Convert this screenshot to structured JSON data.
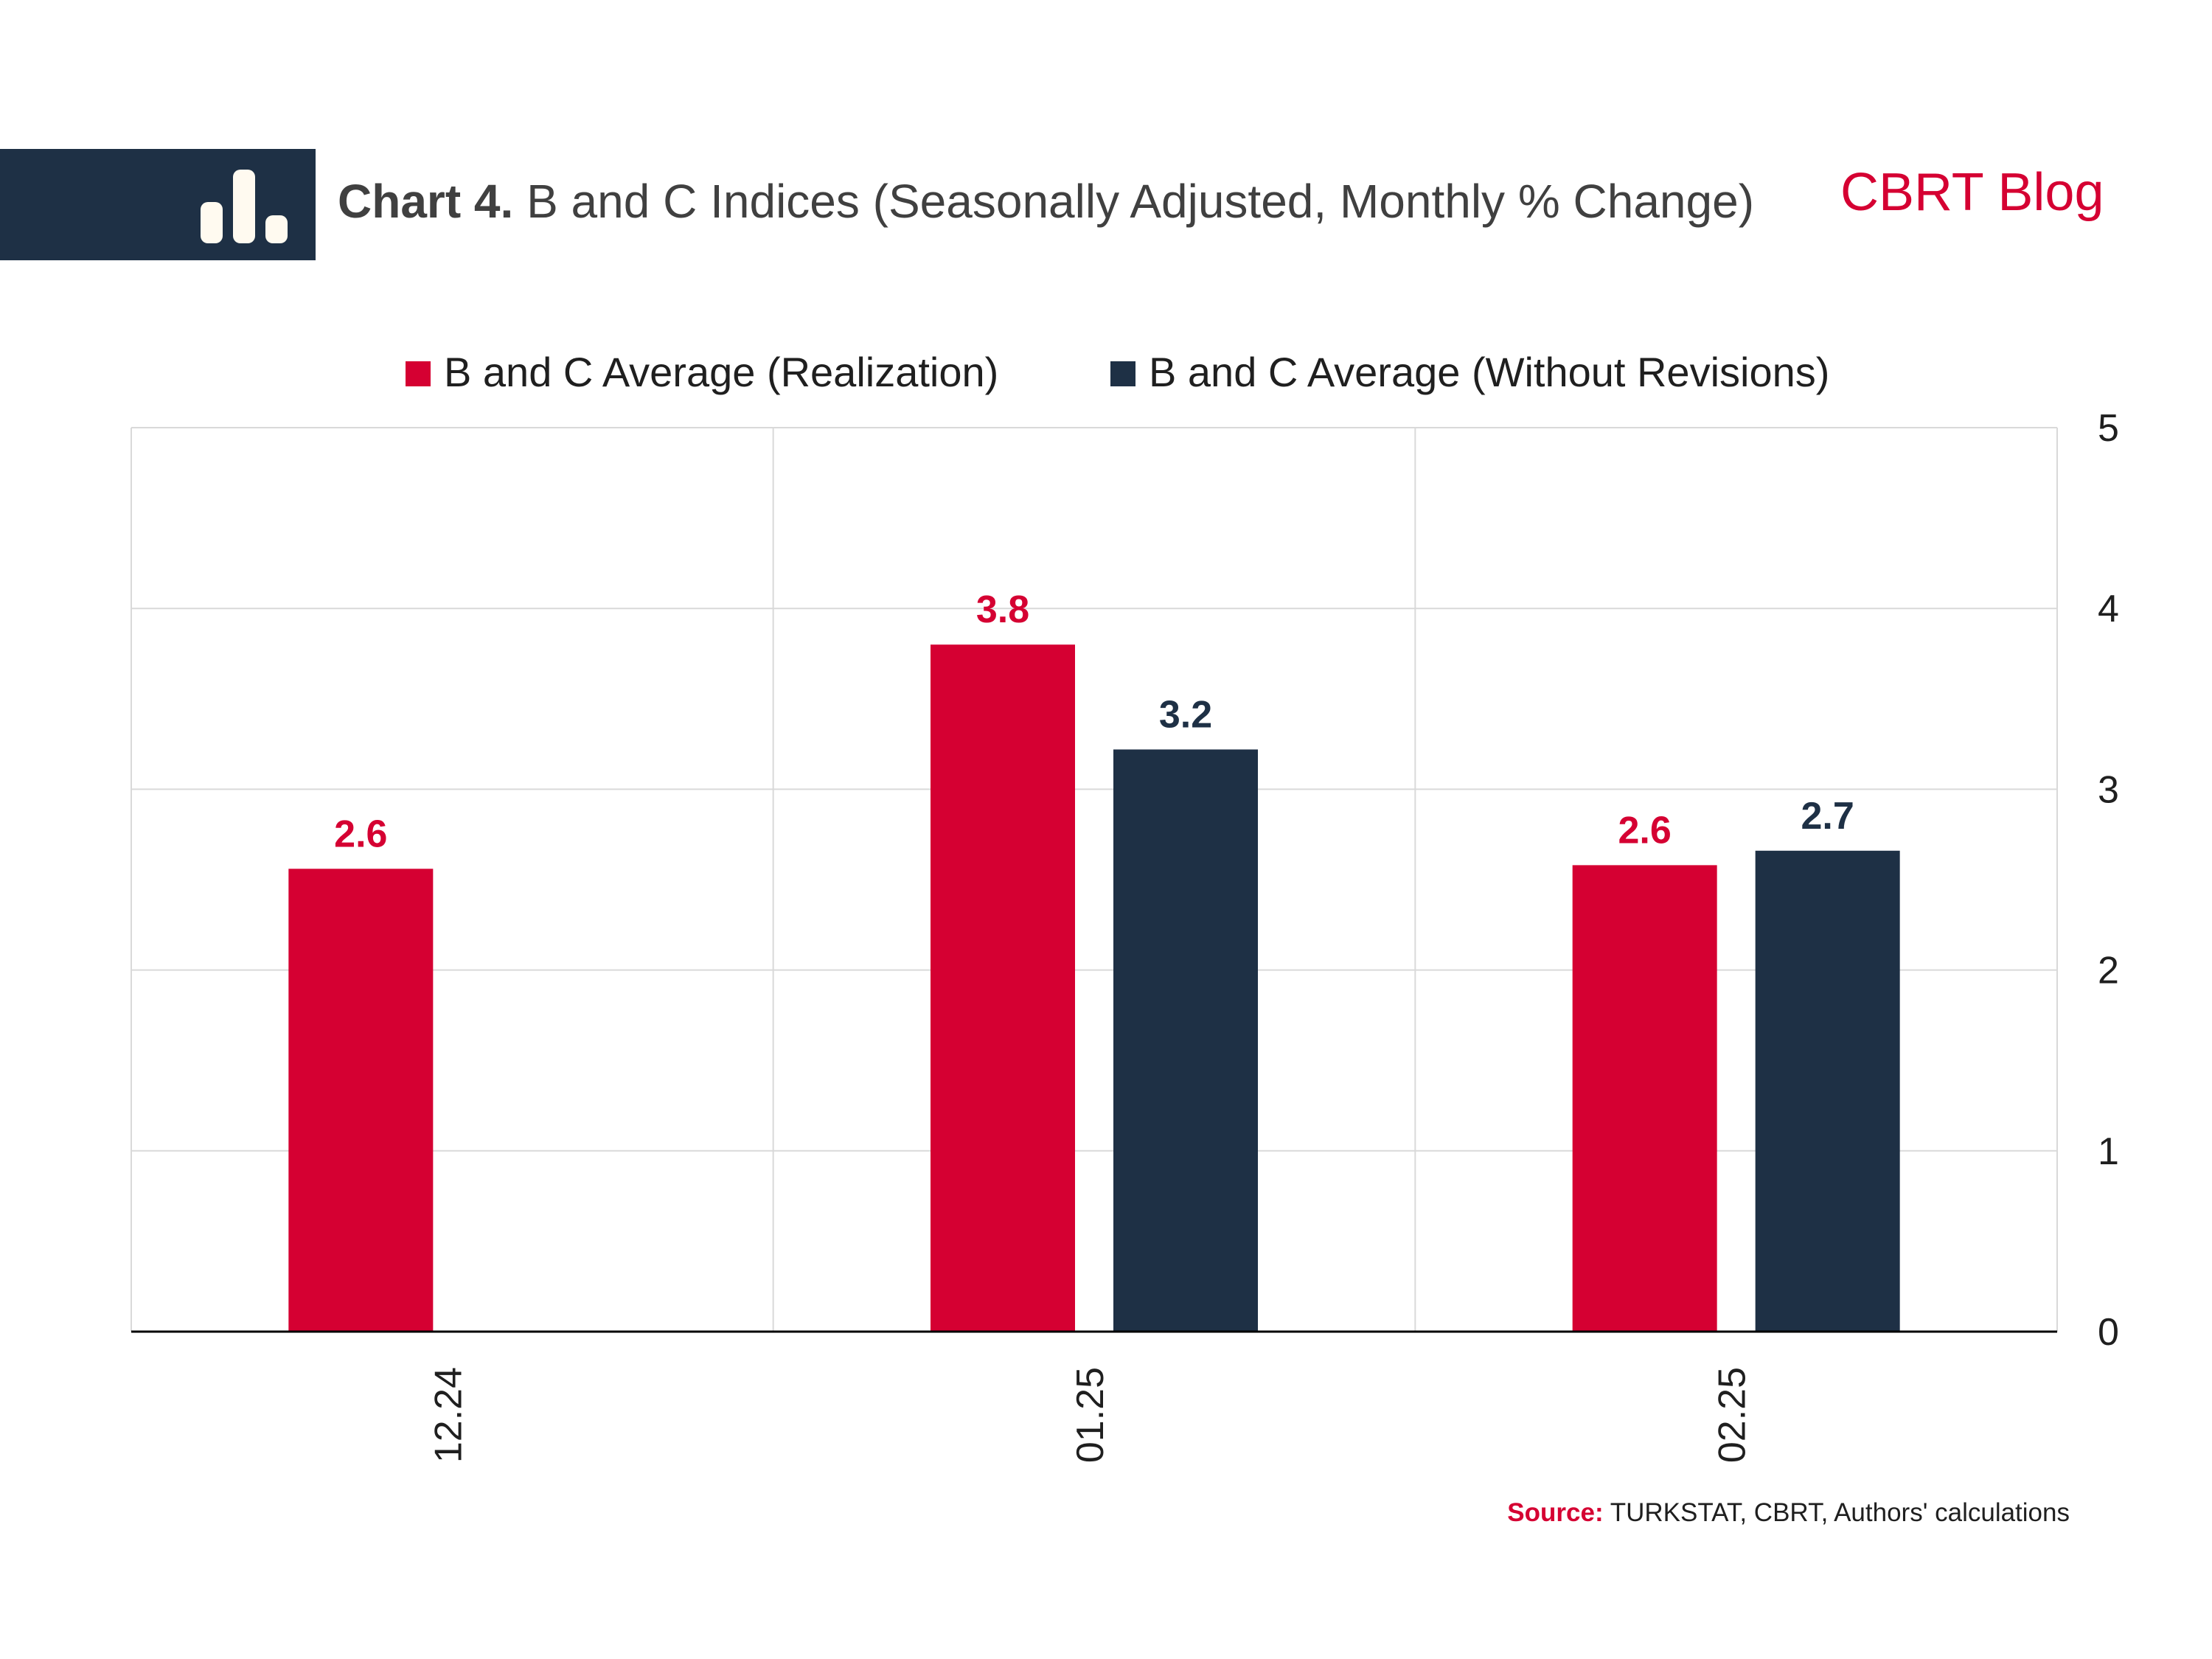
{
  "header": {
    "title_prefix": "Chart 4.",
    "title_text": " B and C Indices (Seasonally Adjusted, Monthly % Change)",
    "brand": "CBRT Blog",
    "icon": "bar-chart-icon"
  },
  "colors": {
    "accent_red": "#d50032",
    "navy": "#1e3045",
    "grid": "#d9d9d9",
    "axis": "#000000",
    "text": "#1f1f1f"
  },
  "chart_data": {
    "type": "bar",
    "categories": [
      "12.24",
      "01.25",
      "02.25"
    ],
    "series": [
      {
        "name": "B and C Average (Realization)",
        "color": "#d50032",
        "values": [
          2.56,
          3.8,
          2.58
        ],
        "labels": [
          "2.6",
          "3.8",
          "2.6"
        ]
      },
      {
        "name": "B and C Average (Without Revisions)",
        "color": "#1e3045",
        "values": [
          null,
          3.22,
          2.66
        ],
        "labels": [
          "",
          "3.2",
          "2.7"
        ]
      }
    ],
    "y_ticks": [
      "0",
      "1",
      "2",
      "3",
      "4",
      "5"
    ],
    "ylim": [
      0,
      5
    ],
    "y_axis_side": "right",
    "x_tick_rotation": "vertical",
    "grid": true,
    "legend_position": "top"
  },
  "footer": {
    "source_label": "Source:",
    "source_text": " TURKSTAT, CBRT, Authors' calculations"
  }
}
